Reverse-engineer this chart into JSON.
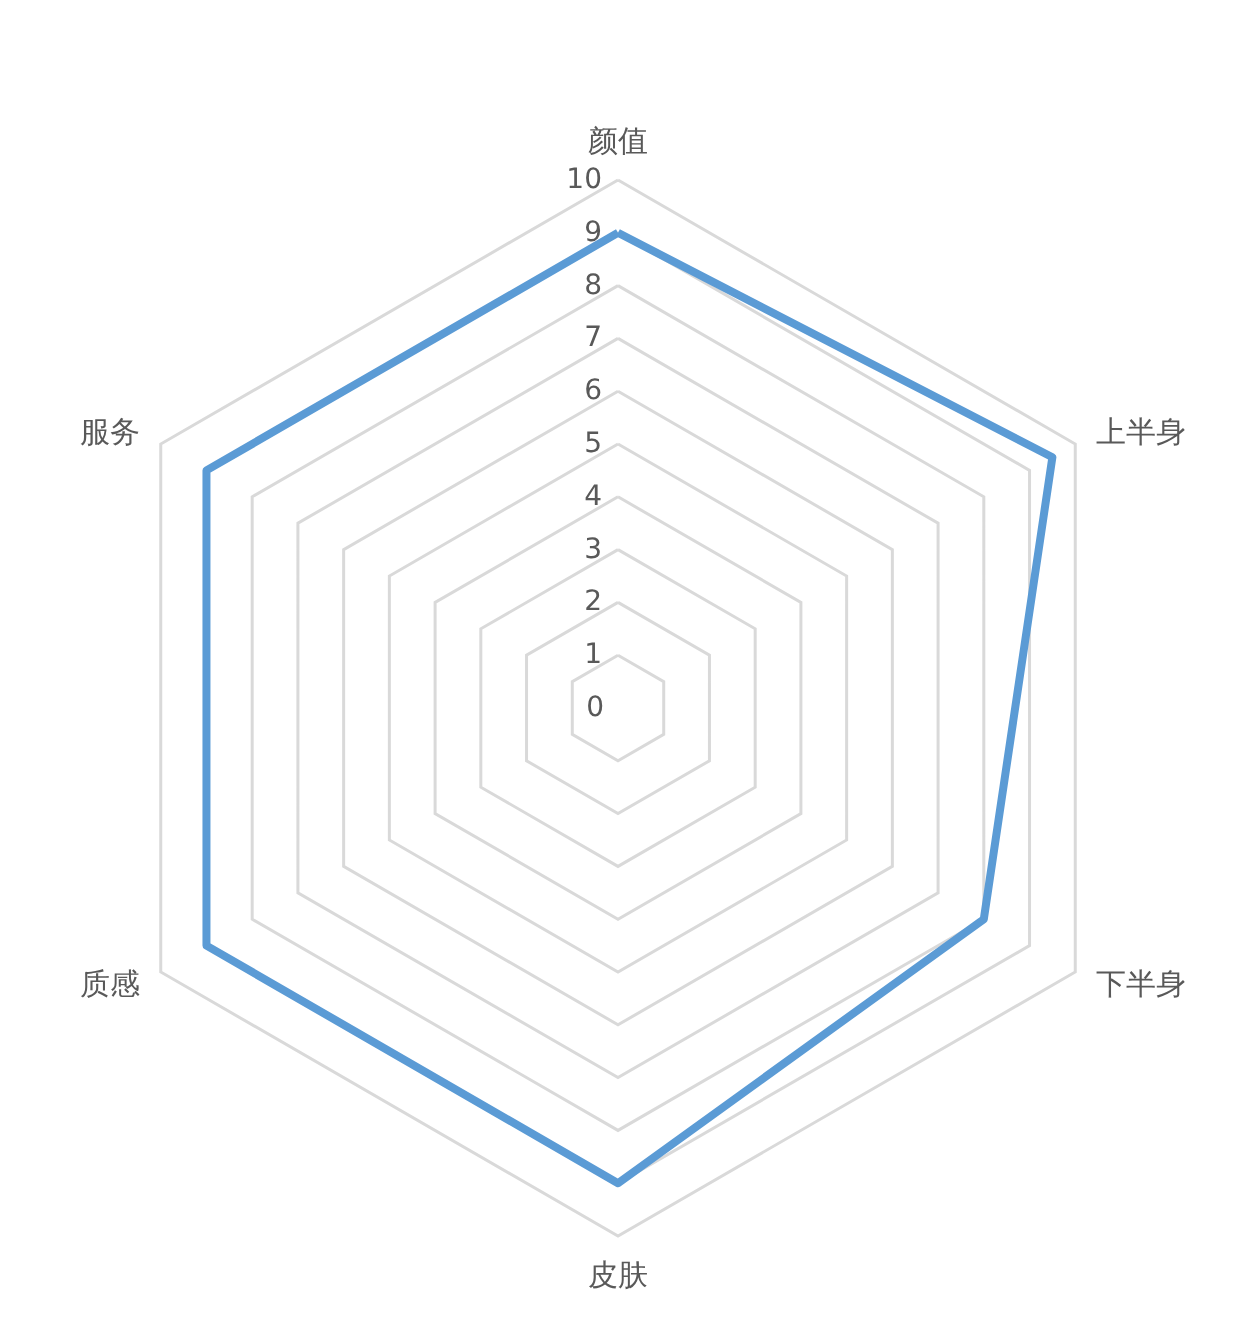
{
  "chart_data": {
    "type": "radar",
    "categories": [
      "颜值",
      "上半身",
      "下半身",
      "皮肤",
      "质感",
      "服务"
    ],
    "series": [
      {
        "color": "#5b9bd5",
        "values": [
          9,
          9.5,
          8,
          9,
          9,
          9
        ]
      }
    ],
    "ylim": [
      0,
      10
    ],
    "yticks": [
      0,
      1,
      2,
      3,
      4,
      5,
      6,
      7,
      8,
      9,
      10
    ],
    "grid": true,
    "marker": "none",
    "line_style": "solid"
  }
}
